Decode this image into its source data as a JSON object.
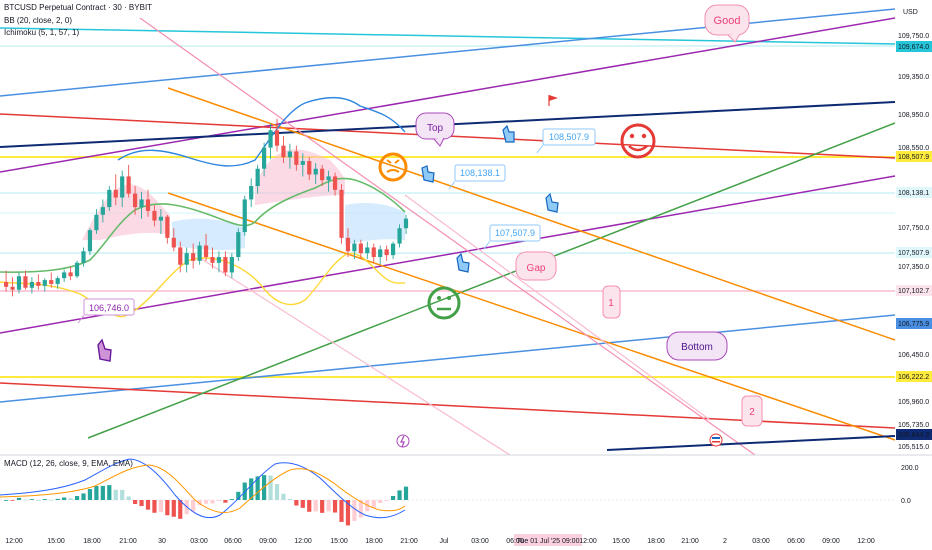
{
  "header": {
    "title": "BTCUSD Perpetual Contract · 30 · BYBIT",
    "indicators": [
      "BB (20, close, 2, 0)",
      "Ichimoku (5, 1, 57, 1)"
    ],
    "currency": "USD"
  },
  "macd": {
    "label": "MACD (12, 26, close, 9, EMA, EMA)"
  },
  "price_axis": {
    "ticks": [
      "109,750.0",
      "109,350.0",
      "108,950.0",
      "108,550.0",
      "107,750.0",
      "107,350.0",
      "106,450.0",
      "105,960.0",
      "105,735.0",
      "105,515.0"
    ],
    "macd_ticks": [
      "200.0",
      "0.0"
    ]
  },
  "price_tags": [
    {
      "text": "109,674.0",
      "color": "#26c6da"
    },
    {
      "text": "108,507.9",
      "color": "#ffeb3b"
    },
    {
      "text": "108,138.1",
      "color": "#b2ebf2"
    },
    {
      "text": "107,507.9",
      "color": "#b2ebf2"
    },
    {
      "text": "107,102.7",
      "color": "#f8bbd0"
    },
    {
      "text": "106,775.9",
      "color": "#4a90e2"
    },
    {
      "text": "106,222.2",
      "color": "#ffeb3b"
    },
    {
      "text": "105,644.3",
      "color": "#0d2a73"
    }
  ],
  "time_axis": {
    "labels": [
      "12:00",
      "15:00",
      "18:00",
      "21:00",
      "30",
      "03:00",
      "06:00",
      "09:00",
      "12:00",
      "15:00",
      "18:00",
      "21:00",
      "Jul",
      "03:00",
      "06:00",
      "Tue 01 Jul '25 09:00",
      "12:00",
      "15:00",
      "18:00",
      "21:00",
      "2",
      "03:00",
      "06:00",
      "09:00",
      "12:00"
    ]
  },
  "annotations": {
    "good": "Good",
    "top": "Top",
    "gap": "Gap",
    "bottom": "Bottom",
    "one": "1",
    "two": "2",
    "callouts": [
      "108,507.9",
      "108,138.1",
      "107,507.9",
      "106,746.0"
    ]
  },
  "colors": {
    "up": "#26a69a",
    "down": "#ef5350",
    "bb_basis": "#2962ff",
    "ichimoku_cloud_up": "#a5d6a7",
    "ichimoku_cloud_down": "#f8bbd0"
  },
  "chart_data": {
    "type": "candlestick",
    "candles": [
      {
        "o": 107200,
        "h": 107320,
        "l": 107100,
        "c": 107150
      },
      {
        "o": 107150,
        "h": 107250,
        "l": 107050,
        "c": 107120
      },
      {
        "o": 107120,
        "h": 107300,
        "l": 107080,
        "c": 107260
      },
      {
        "o": 107260,
        "h": 107320,
        "l": 107120,
        "c": 107140
      },
      {
        "o": 107140,
        "h": 107250,
        "l": 107080,
        "c": 107200
      },
      {
        "o": 107200,
        "h": 107280,
        "l": 107120,
        "c": 107160
      },
      {
        "o": 107160,
        "h": 107240,
        "l": 107100,
        "c": 107220
      },
      {
        "o": 107220,
        "h": 107300,
        "l": 107140,
        "c": 107180
      },
      {
        "o": 107180,
        "h": 107260,
        "l": 107130,
        "c": 107240
      },
      {
        "o": 107240,
        "h": 107330,
        "l": 107200,
        "c": 107300
      },
      {
        "o": 107300,
        "h": 107360,
        "l": 107220,
        "c": 107260
      },
      {
        "o": 107260,
        "h": 107420,
        "l": 107240,
        "c": 107400
      },
      {
        "o": 107400,
        "h": 107560,
        "l": 107360,
        "c": 107520
      },
      {
        "o": 107520,
        "h": 107760,
        "l": 107480,
        "c": 107740
      },
      {
        "o": 107740,
        "h": 107960,
        "l": 107700,
        "c": 107900
      },
      {
        "o": 107900,
        "h": 108060,
        "l": 107820,
        "c": 107980
      },
      {
        "o": 107980,
        "h": 108200,
        "l": 107940,
        "c": 108160
      },
      {
        "o": 108160,
        "h": 108320,
        "l": 108000,
        "c": 108080
      },
      {
        "o": 108080,
        "h": 108360,
        "l": 107980,
        "c": 108300
      },
      {
        "o": 108300,
        "h": 108420,
        "l": 108080,
        "c": 108120
      },
      {
        "o": 108120,
        "h": 108200,
        "l": 107900,
        "c": 107980
      },
      {
        "o": 107980,
        "h": 108140,
        "l": 107860,
        "c": 108060
      },
      {
        "o": 108060,
        "h": 108160,
        "l": 107880,
        "c": 107940
      },
      {
        "o": 107940,
        "h": 108000,
        "l": 107780,
        "c": 107840
      },
      {
        "o": 107840,
        "h": 107960,
        "l": 107700,
        "c": 107880
      },
      {
        "o": 107880,
        "h": 107900,
        "l": 107600,
        "c": 107660
      },
      {
        "o": 107660,
        "h": 107760,
        "l": 107520,
        "c": 107560
      },
      {
        "o": 107560,
        "h": 107620,
        "l": 107300,
        "c": 107380
      },
      {
        "o": 107380,
        "h": 107560,
        "l": 107300,
        "c": 107500
      },
      {
        "o": 107500,
        "h": 107600,
        "l": 107340,
        "c": 107420
      },
      {
        "o": 107420,
        "h": 107620,
        "l": 107380,
        "c": 107580
      },
      {
        "o": 107580,
        "h": 107700,
        "l": 107420,
        "c": 107460
      },
      {
        "o": 107460,
        "h": 107560,
        "l": 107340,
        "c": 107400
      },
      {
        "o": 107400,
        "h": 107520,
        "l": 107300,
        "c": 107460
      },
      {
        "o": 107460,
        "h": 107520,
        "l": 107260,
        "c": 107300
      },
      {
        "o": 107300,
        "h": 107500,
        "l": 107240,
        "c": 107460
      },
      {
        "o": 107460,
        "h": 107760,
        "l": 107420,
        "c": 107720
      },
      {
        "o": 107720,
        "h": 108100,
        "l": 107680,
        "c": 108060
      },
      {
        "o": 108060,
        "h": 108280,
        "l": 107980,
        "c": 108200
      },
      {
        "o": 108200,
        "h": 108420,
        "l": 108120,
        "c": 108380
      },
      {
        "o": 108380,
        "h": 108650,
        "l": 108300,
        "c": 108600
      },
      {
        "o": 108600,
        "h": 108850,
        "l": 108480,
        "c": 108780
      },
      {
        "o": 108780,
        "h": 108900,
        "l": 108560,
        "c": 108620
      },
      {
        "o": 108620,
        "h": 108720,
        "l": 108440,
        "c": 108500
      },
      {
        "o": 108500,
        "h": 108640,
        "l": 108380,
        "c": 108560
      },
      {
        "o": 108560,
        "h": 108620,
        "l": 108360,
        "c": 108420
      },
      {
        "o": 108420,
        "h": 108540,
        "l": 108300,
        "c": 108460
      },
      {
        "o": 108460,
        "h": 108500,
        "l": 108260,
        "c": 108320
      },
      {
        "o": 108320,
        "h": 108440,
        "l": 108220,
        "c": 108380
      },
      {
        "o": 108380,
        "h": 108420,
        "l": 108200,
        "c": 108260
      },
      {
        "o": 108260,
        "h": 108360,
        "l": 108140,
        "c": 108300
      },
      {
        "o": 108300,
        "h": 108340,
        "l": 108100,
        "c": 108160
      },
      {
        "o": 108160,
        "h": 108220,
        "l": 107600,
        "c": 107660
      },
      {
        "o": 107660,
        "h": 107760,
        "l": 107460,
        "c": 107520
      },
      {
        "o": 107520,
        "h": 107640,
        "l": 107440,
        "c": 107600
      },
      {
        "o": 107600,
        "h": 107640,
        "l": 107440,
        "c": 107500
      },
      {
        "o": 107500,
        "h": 107620,
        "l": 107440,
        "c": 107560
      },
      {
        "o": 107560,
        "h": 107600,
        "l": 107400,
        "c": 107460
      },
      {
        "o": 107460,
        "h": 107580,
        "l": 107380,
        "c": 107540
      },
      {
        "o": 107540,
        "h": 107580,
        "l": 107420,
        "c": 107480
      },
      {
        "o": 107480,
        "h": 107620,
        "l": 107440,
        "c": 107600
      },
      {
        "o": 107600,
        "h": 107800,
        "l": 107560,
        "c": 107760
      },
      {
        "o": 107760,
        "h": 107900,
        "l": 107700,
        "c": 107860
      }
    ]
  }
}
